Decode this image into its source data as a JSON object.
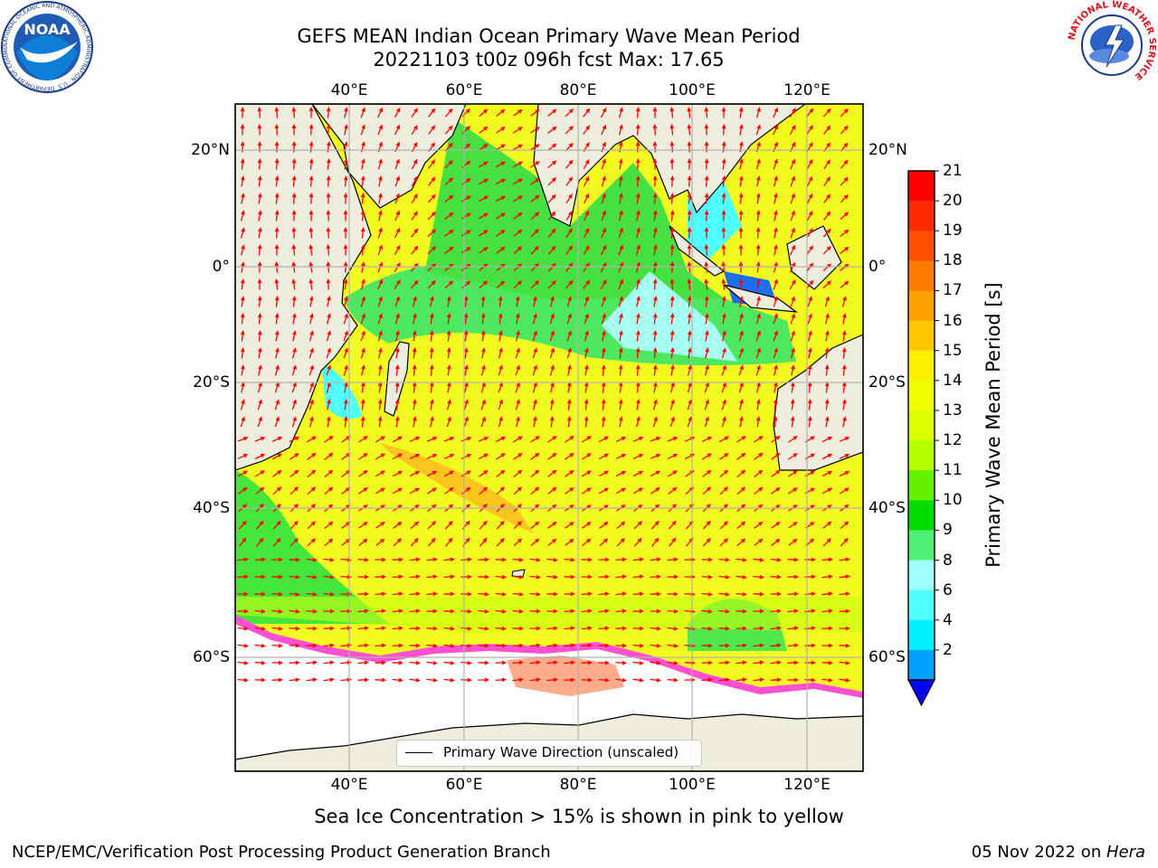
{
  "title": "GEFS MEAN Indian Ocean Primary Wave Mean Period",
  "subtitle": "20221103 t00z 096h fcst   Max: 17.65",
  "top_lon_labels": [
    "40°E",
    "60°E",
    "80°E",
    "100°E",
    "120°E"
  ],
  "bottom_lon_labels": [
    "40°E",
    "60°E",
    "80°E",
    "100°E",
    "120°E"
  ],
  "left_lat_labels": [
    "20°N",
    "0°",
    "20°S",
    "40°S",
    "60°S"
  ],
  "right_lat_labels": [
    "20°N",
    "0°",
    "20°S",
    "40°S",
    "60°S"
  ],
  "legend_label": "Primary Wave Direction (unscaled)",
  "colorbar": {
    "label": "Primary Wave Mean Period [s]",
    "ticks": [
      "21",
      "20",
      "19",
      "18",
      "17",
      "16",
      "15",
      "14",
      "13",
      "12",
      "11",
      "10",
      "9",
      "8",
      "6",
      "4",
      "2"
    ],
    "colors_top_to_bottom": [
      "#ff0000",
      "#ff2a00",
      "#ff5000",
      "#ff7a00",
      "#ffa000",
      "#ffc800",
      "#fff000",
      "#f0ff00",
      "#dcff00",
      "#b4ff00",
      "#64f000",
      "#00dc00",
      "#50f078",
      "#a0ffff",
      "#50ffff",
      "#00f0ff",
      "#00a0ff"
    ],
    "under_color": "#0000ff"
  },
  "footer_note": "Sea Ice Concentration > 15% is shown in pink to yellow",
  "credit": "NCEP/EMC/Verification Post Processing Product Generation Branch",
  "date_text": "05 Nov 2022 on ",
  "date_host": "Hera",
  "logos": {
    "noaa": "NOAA",
    "noaa_ring": "NATIONAL OCEANIC AND ATMOSPHERIC ADMINISTRATION · U.S. DEPARTMENT OF COMMERCE",
    "nws": "NATIONAL WEATHER SERVICE"
  },
  "colors": {
    "land": "#efedde",
    "ice_white": "#ffffff",
    "ice_pink": "#ff50d2",
    "arrow": "#ff0000",
    "grid": "#b0b0b0"
  }
}
